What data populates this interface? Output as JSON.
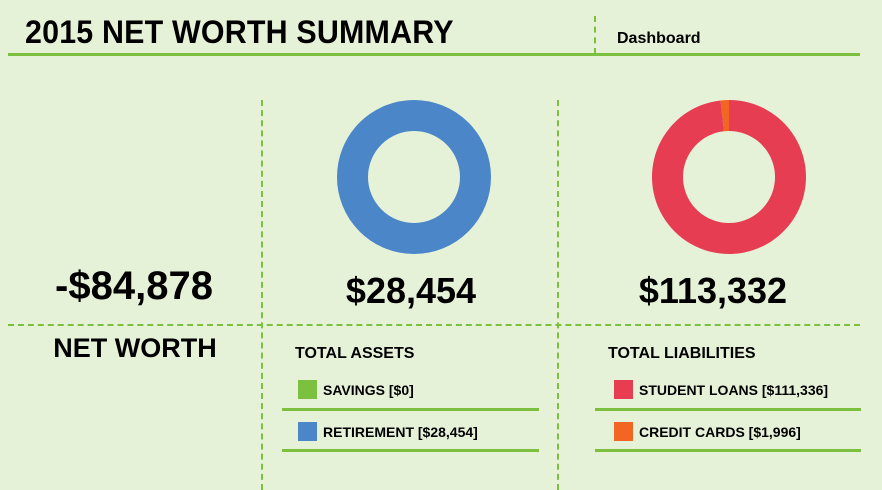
{
  "header": {
    "title": "2015 NET WORTH SUMMARY",
    "dashboard_label": "Dashboard"
  },
  "net_worth": {
    "value": "-$84,878",
    "label": "NET WORTH"
  },
  "colors": {
    "accent_green": "#7cc040",
    "savings": "#7cc040",
    "retirement": "#4a86c8",
    "student_loans": "#e63d52",
    "credit_cards": "#f26522",
    "background": "#e6f2d8"
  },
  "assets": {
    "total": "$28,454",
    "heading": "TOTAL ASSETS",
    "items": [
      {
        "label": "SAVINGS [$0]"
      },
      {
        "label": "RETIREMENT [$28,454]"
      }
    ]
  },
  "liabilities": {
    "total": "$113,332",
    "heading": "TOTAL LIABILITIES",
    "items": [
      {
        "label": "STUDENT LOANS [$111,336]"
      },
      {
        "label": "CREDIT CARDS [$1,996]"
      }
    ]
  },
  "chart_data": [
    {
      "type": "pie",
      "title": "TOTAL ASSETS",
      "donut": true,
      "categories": [
        "SAVINGS",
        "RETIREMENT"
      ],
      "values": [
        0,
        28454
      ],
      "colors": [
        "#7cc040",
        "#4a86c8"
      ]
    },
    {
      "type": "pie",
      "title": "TOTAL LIABILITIES",
      "donut": true,
      "categories": [
        "STUDENT LOANS",
        "CREDIT CARDS"
      ],
      "values": [
        111336,
        1996
      ],
      "colors": [
        "#e63d52",
        "#f26522"
      ]
    }
  ]
}
